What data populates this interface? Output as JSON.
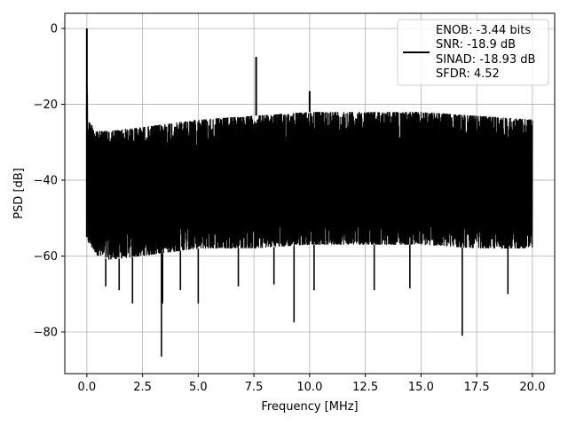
{
  "chart_data": {
    "type": "line",
    "title": "",
    "xlabel": "Frequency [MHz]",
    "ylabel": "PSD [dB]",
    "xlim": [
      -0.99,
      21.0
    ],
    "ylim": [
      -91.0,
      4.0
    ],
    "x_ticks": [
      0.0,
      2.5,
      5.0,
      7.5,
      10.0,
      12.5,
      15.0,
      17.5,
      20.0
    ],
    "x_tick_labels": [
      "0.0",
      "2.5",
      "5.0",
      "7.5",
      "10.0",
      "12.5",
      "15.0",
      "17.5",
      "20.0"
    ],
    "y_ticks": [
      0,
      -20,
      -40,
      -60,
      -80
    ],
    "y_tick_labels": [
      "0",
      "−20",
      "−40",
      "−60",
      "−80"
    ],
    "grid": true,
    "legend_position": "top-right",
    "line_color": "#000000",
    "series": [
      {
        "name": "",
        "legend_lines": [
          "ENOB: -3.44 bits",
          "SNR: -18.9 dB",
          "SINAD: -18.93 dB",
          "SFDR: 4.52"
        ],
        "x_range": [
          0.0,
          20.0
        ],
        "noise_floor_envelope": {
          "x": [
            0.0,
            0.5,
            1.0,
            2.5,
            5.0,
            7.5,
            10.0,
            12.5,
            15.0,
            17.5,
            20.0
          ],
          "upper": [
            -24,
            -27,
            -27,
            -26,
            -24,
            -23,
            -22,
            -22,
            -22,
            -23,
            -24
          ],
          "lower": [
            -56,
            -60,
            -61,
            -60,
            -58,
            -58,
            -57,
            -57,
            -57,
            -58,
            -58
          ]
        },
        "peaks": [
          {
            "x": 0.0,
            "y": 0.0
          },
          {
            "x": 7.6,
            "y": -7.5
          },
          {
            "x": 10.0,
            "y": -16.5
          }
        ],
        "dips": [
          {
            "x": 3.35,
            "y": -86.5
          },
          {
            "x": 16.85,
            "y": -81.0
          },
          {
            "x": 9.3,
            "y": -77.5
          },
          {
            "x": 3.4,
            "y": -72.5
          },
          {
            "x": 2.05,
            "y": -72.5
          },
          {
            "x": 5.0,
            "y": -72.5
          },
          {
            "x": 0.85,
            "y": -68.0
          },
          {
            "x": 1.45,
            "y": -69.0
          },
          {
            "x": 4.2,
            "y": -69.0
          },
          {
            "x": 10.2,
            "y": -69.0
          },
          {
            "x": 12.9,
            "y": -69.0
          },
          {
            "x": 14.5,
            "y": -68.5
          },
          {
            "x": 18.9,
            "y": -70.0
          },
          {
            "x": 6.8,
            "y": -68.0
          },
          {
            "x": 8.4,
            "y": -67.5
          }
        ]
      }
    ]
  }
}
